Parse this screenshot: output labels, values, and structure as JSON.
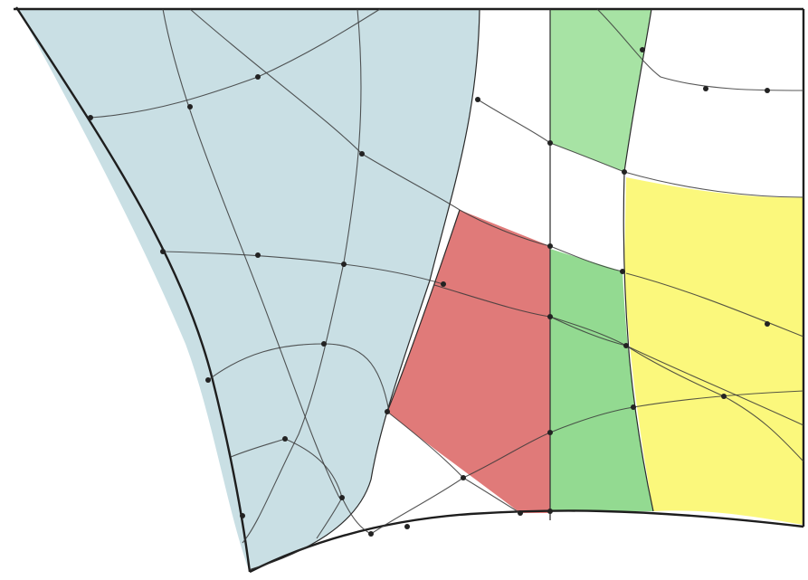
{
  "diagram": {
    "kind": "curvilinear mesh partition",
    "regions": [
      {
        "name": "region-blue",
        "color": "#c9dfe4"
      },
      {
        "name": "region-red",
        "color": "#e07a79"
      },
      {
        "name": "region-green-top",
        "color": "#a7e3a4"
      },
      {
        "name": "region-green-bottom",
        "color": "#93da91"
      },
      {
        "name": "region-yellow",
        "color": "#fbf87c"
      }
    ],
    "colors": {
      "background": "#ffffff",
      "line": "#2b2b2b",
      "node": "#222222"
    }
  }
}
